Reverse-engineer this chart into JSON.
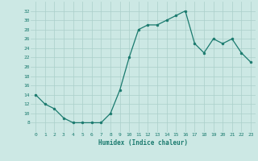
{
  "x": [
    0,
    1,
    2,
    3,
    4,
    5,
    6,
    7,
    8,
    9,
    10,
    11,
    12,
    13,
    14,
    15,
    16,
    17,
    18,
    19,
    20,
    21,
    22,
    23
  ],
  "y": [
    14,
    12,
    11,
    9,
    8,
    8,
    8,
    8,
    10,
    15,
    22,
    28,
    29,
    29,
    30,
    31,
    32,
    25,
    23,
    26,
    25,
    26,
    23,
    21
  ],
  "xlabel": "Humidex (Indice chaleur)",
  "xlim": [
    -0.5,
    23.5
  ],
  "ylim": [
    6,
    34
  ],
  "yticks": [
    8,
    10,
    12,
    14,
    16,
    18,
    20,
    22,
    24,
    26,
    28,
    30,
    32
  ],
  "xticks": [
    0,
    1,
    2,
    3,
    4,
    5,
    6,
    7,
    8,
    9,
    10,
    11,
    12,
    13,
    14,
    15,
    16,
    17,
    18,
    19,
    20,
    21,
    22,
    23
  ],
  "line_color": "#1a7a6e",
  "marker_color": "#1a7a6e",
  "bg_color": "#cce8e4",
  "grid_color": "#aacfca",
  "tick_label_color": "#1a7a6e",
  "xlabel_color": "#1a7a6e"
}
